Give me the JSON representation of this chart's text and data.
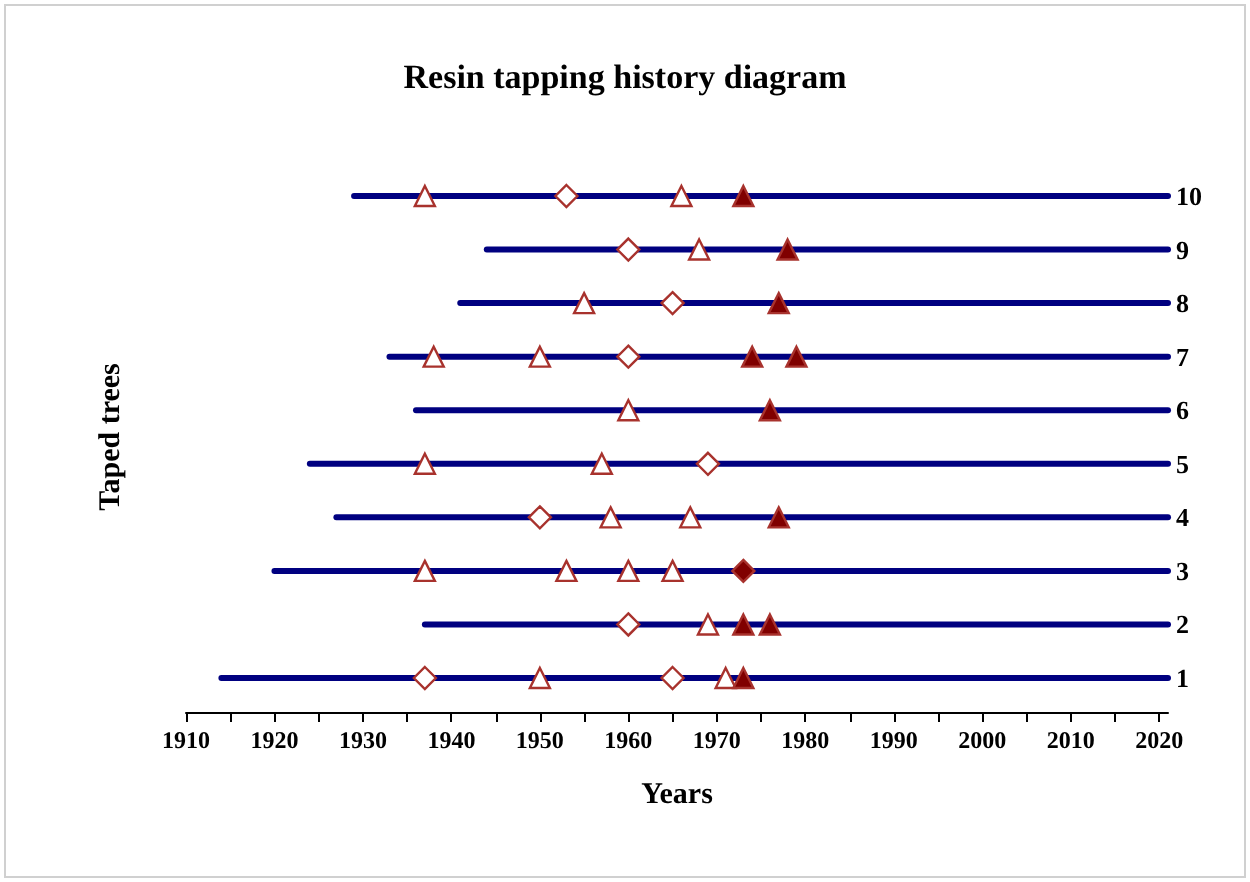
{
  "chart_data": {
    "type": "line",
    "title": "Resin tapping history diagram",
    "xlabel": "Years",
    "ylabel": "Taped trees",
    "xlim": [
      1910,
      2021
    ],
    "xticks": [
      1910,
      {
        "value": 1915,
        "label": null
      },
      1920,
      {
        "value": 1925,
        "label": null
      },
      1930,
      {
        "value": 1935,
        "label": null
      },
      1940,
      {
        "value": 1945,
        "label": null
      },
      1950,
      {
        "value": 1955,
        "label": null
      },
      1960,
      {
        "value": 1965,
        "label": null
      },
      1970,
      {
        "value": 1975,
        "label": null
      },
      1980,
      {
        "value": 1985,
        "label": null
      },
      1990,
      {
        "value": 1995,
        "label": null
      },
      2000,
      {
        "value": 2005,
        "label": null
      },
      2010,
      {
        "value": 2015,
        "label": null
      },
      2020
    ],
    "ylim": [
      1,
      10
    ],
    "yticks": [
      1,
      2,
      3,
      4,
      5,
      6,
      7,
      8,
      9,
      10
    ],
    "grid": false,
    "series": [
      {
        "type": "line",
        "color": "#000080",
        "marker": "none",
        "x": [
          1914,
          2021
        ],
        "values": [
          1,
          1
        ]
      },
      {
        "type": "line",
        "color": "#000080",
        "marker": "none",
        "x": [
          1937,
          2021
        ],
        "values": [
          2,
          2
        ]
      },
      {
        "type": "line",
        "color": "#000080",
        "marker": "none",
        "x": [
          1920,
          2021
        ],
        "values": [
          3,
          3
        ]
      },
      {
        "type": "line",
        "color": "#000080",
        "marker": "none",
        "x": [
          1927,
          2021
        ],
        "values": [
          4,
          4
        ]
      },
      {
        "type": "line",
        "color": "#000080",
        "marker": "none",
        "x": [
          1924,
          2021
        ],
        "values": [
          5,
          5
        ]
      },
      {
        "type": "line",
        "color": "#000080",
        "marker": "none",
        "x": [
          1936,
          2021
        ],
        "values": [
          6,
          6
        ]
      },
      {
        "type": "line",
        "color": "#000080",
        "marker": "none",
        "x": [
          1933,
          2021
        ],
        "values": [
          7,
          7
        ]
      },
      {
        "type": "line",
        "color": "#000080",
        "marker": "none",
        "x": [
          1941,
          2021
        ],
        "values": [
          8,
          8
        ]
      },
      {
        "type": "line",
        "color": "#000080",
        "marker": "none",
        "x": [
          1944,
          2021
        ],
        "values": [
          9,
          9
        ]
      },
      {
        "type": "line",
        "color": "#000080",
        "marker": "none",
        "x": [
          1929,
          2021
        ],
        "values": [
          10,
          10
        ]
      },
      {
        "type": "scatter",
        "color": "#ffffff",
        "marker": "triangle",
        "x": [
          1950,
          1971,
          1969,
          1937,
          1953,
          1960,
          1965,
          1958,
          1967,
          1937,
          1957,
          1960,
          1938,
          1950,
          1955,
          1968,
          1937,
          1966
        ],
        "values": [
          1,
          1,
          2,
          3,
          3,
          3,
          3,
          4,
          4,
          5,
          5,
          6,
          7,
          7,
          8,
          9,
          10,
          10
        ]
      },
      {
        "type": "scatter",
        "color": "#ffffff",
        "marker": "diamond",
        "x": [
          1937,
          1965,
          1960,
          1950,
          1969,
          1960,
          1965,
          1960,
          1953
        ],
        "values": [
          1,
          1,
          2,
          4,
          5,
          7,
          8,
          9,
          10
        ]
      },
      {
        "type": "scatter",
        "color": "#800000",
        "marker": "triangle",
        "x": [
          1973,
          1973,
          1976,
          1977,
          1976,
          1974,
          1979,
          1977,
          1978,
          1973
        ],
        "values": [
          1,
          2,
          2,
          4,
          6,
          7,
          7,
          8,
          9,
          10
        ]
      },
      {
        "type": "scatter",
        "color": "#800000",
        "marker": "diamond",
        "x": [
          1973
        ],
        "values": [
          3
        ]
      }
    ]
  }
}
